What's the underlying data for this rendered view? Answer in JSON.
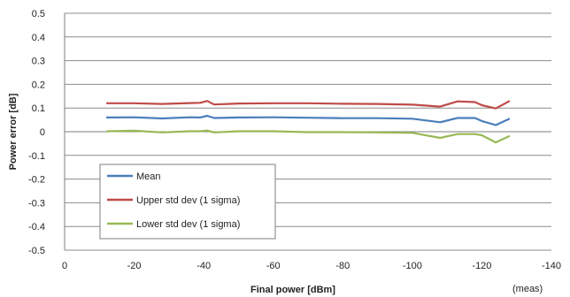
{
  "chart_data": {
    "type": "line",
    "xlabel": "Final power [dBm]",
    "ylabel": "Power error [dB]",
    "note": "(meas)",
    "xlim": [
      0,
      -140
    ],
    "ylim": [
      -0.5,
      0.5
    ],
    "x_ticks": [
      0,
      -20,
      -40,
      -60,
      -80,
      -100,
      -120,
      -140
    ],
    "x_tick_labels": [
      "0",
      "-20",
      "-40",
      "-60",
      "-80",
      "-100",
      "-120",
      "-140"
    ],
    "y_ticks": [
      0.5,
      0.4,
      0.3,
      0.2,
      0.1,
      0,
      -0.1,
      -0.2,
      -0.3,
      -0.4,
      -0.5
    ],
    "y_tick_labels": [
      "0.5",
      "0.4",
      "0.3",
      "0.2",
      "0.1",
      "0",
      "-0.1",
      "-0.2",
      "-0.3",
      "-0.4",
      "-0.5"
    ],
    "grid": "horizontal",
    "legend_position": "bottom-left",
    "series": [
      {
        "name": "Mean",
        "color": "#4a7ebb",
        "points": [
          [
            -12,
            0.06
          ],
          [
            -20,
            0.061
          ],
          [
            -28,
            0.056
          ],
          [
            -36,
            0.061
          ],
          [
            -39,
            0.06
          ],
          [
            -41,
            0.067
          ],
          [
            -43,
            0.058
          ],
          [
            -50,
            0.06
          ],
          [
            -60,
            0.061
          ],
          [
            -70,
            0.059
          ],
          [
            -80,
            0.057
          ],
          [
            -90,
            0.057
          ],
          [
            -100,
            0.055
          ],
          [
            -108,
            0.04
          ],
          [
            -113,
            0.058
          ],
          [
            -118,
            0.058
          ],
          [
            -120,
            0.045
          ],
          [
            -124,
            0.028
          ],
          [
            -128,
            0.055
          ]
        ]
      },
      {
        "name": "Upper std dev (1 sigma)",
        "color": "#be4b48",
        "points": [
          [
            -12,
            0.12
          ],
          [
            -20,
            0.12
          ],
          [
            -28,
            0.117
          ],
          [
            -36,
            0.121
          ],
          [
            -39,
            0.122
          ],
          [
            -41,
            0.13
          ],
          [
            -43,
            0.115
          ],
          [
            -50,
            0.119
          ],
          [
            -60,
            0.12
          ],
          [
            -70,
            0.12
          ],
          [
            -80,
            0.118
          ],
          [
            -90,
            0.117
          ],
          [
            -100,
            0.114
          ],
          [
            -108,
            0.106
          ],
          [
            -113,
            0.128
          ],
          [
            -118,
            0.125
          ],
          [
            -120,
            0.112
          ],
          [
            -124,
            0.098
          ],
          [
            -128,
            0.13
          ]
        ]
      },
      {
        "name": "Lower std dev (1 sigma)",
        "color": "#98b954",
        "points": [
          [
            -12,
            0.002
          ],
          [
            -20,
            0.004
          ],
          [
            -28,
            -0.003
          ],
          [
            -36,
            0.002
          ],
          [
            -39,
            0.002
          ],
          [
            -41,
            0.005
          ],
          [
            -43,
            -0.003
          ],
          [
            -50,
            0.002
          ],
          [
            -60,
            0.002
          ],
          [
            -70,
            -0.002
          ],
          [
            -80,
            -0.002
          ],
          [
            -90,
            -0.003
          ],
          [
            -100,
            -0.005
          ],
          [
            -108,
            -0.026
          ],
          [
            -113,
            -0.01
          ],
          [
            -118,
            -0.01
          ],
          [
            -120,
            -0.015
          ],
          [
            -124,
            -0.045
          ],
          [
            -128,
            -0.018
          ]
        ]
      }
    ]
  }
}
